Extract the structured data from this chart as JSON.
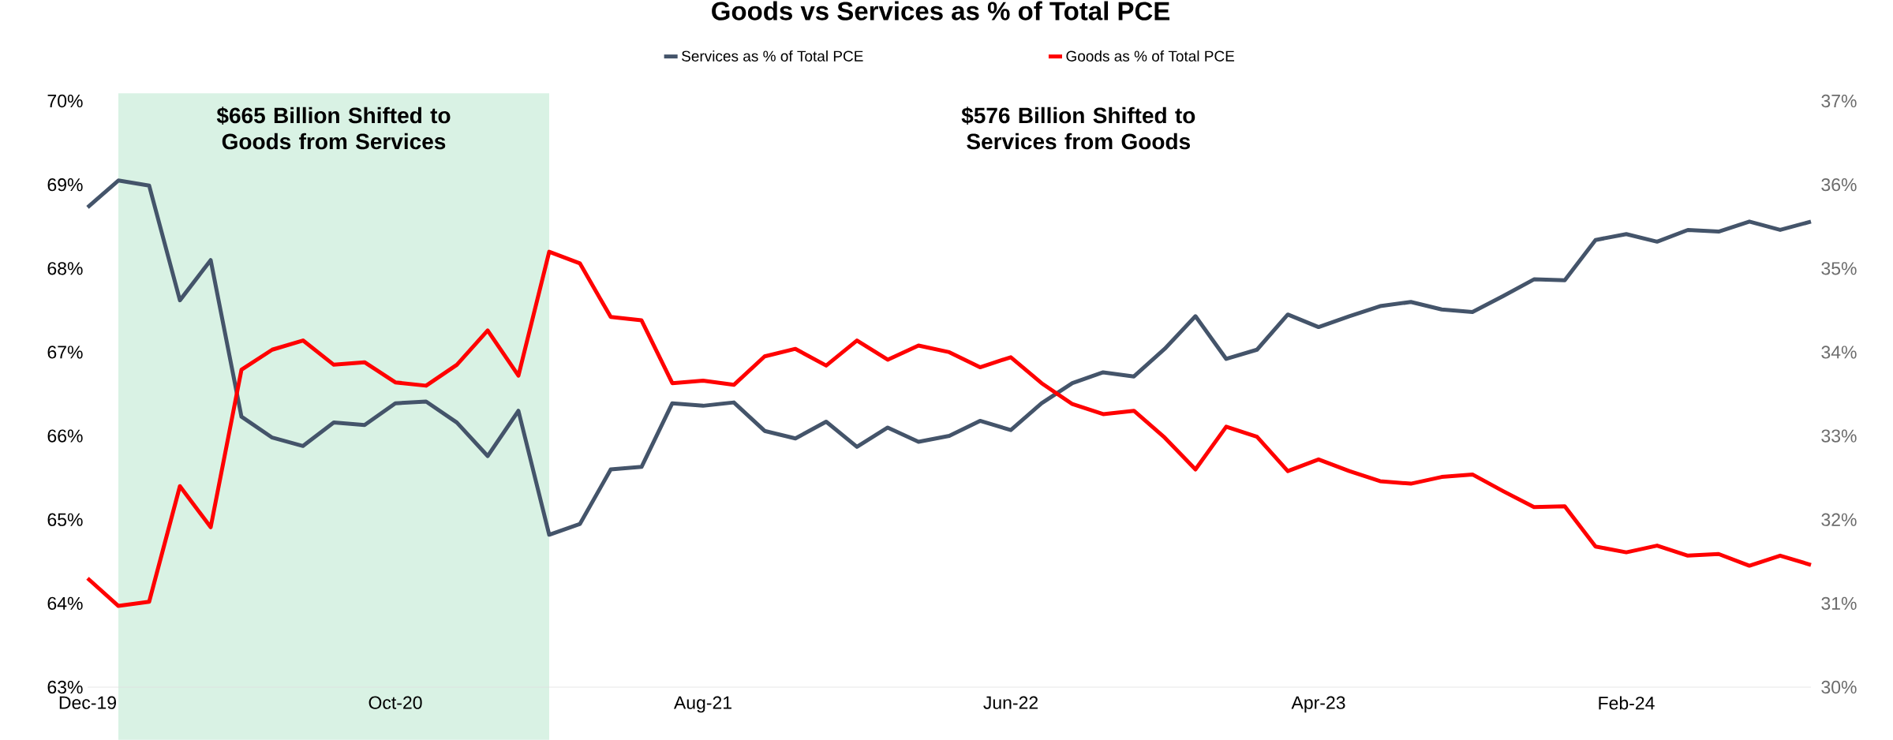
{
  "chart_data": {
    "type": "line",
    "title": "Goods vs Services as % of Total PCE",
    "x": [
      "2019-12",
      "2020-01",
      "2020-02",
      "2020-03",
      "2020-04",
      "2020-05",
      "2020-06",
      "2020-07",
      "2020-08",
      "2020-09",
      "2020-10",
      "2020-11",
      "2020-12",
      "2021-01",
      "2021-02",
      "2021-03",
      "2021-04",
      "2021-05",
      "2021-06",
      "2021-07",
      "2021-08",
      "2021-09",
      "2021-10",
      "2021-11",
      "2021-12",
      "2022-01",
      "2022-02",
      "2022-03",
      "2022-04",
      "2022-05",
      "2022-06",
      "2022-07",
      "2022-08",
      "2022-09",
      "2022-10",
      "2022-11",
      "2022-12",
      "2023-01",
      "2023-02",
      "2023-03",
      "2023-04",
      "2023-05",
      "2023-06",
      "2023-07",
      "2023-08",
      "2023-09",
      "2023-10",
      "2023-11",
      "2023-12",
      "2024-01",
      "2024-02",
      "2024-03",
      "2024-04",
      "2024-05",
      "2024-06",
      "2024-07",
      "2024-08"
    ],
    "series": [
      {
        "name": "Services as % of Total PCE",
        "color": "#44546a",
        "values": [
          68.73,
          69.05,
          68.99,
          67.62,
          68.1,
          66.23,
          65.98,
          65.88,
          66.16,
          66.13,
          66.39,
          66.41,
          66.16,
          65.76,
          66.3,
          64.82,
          64.95,
          65.6,
          65.63,
          66.39,
          66.36,
          66.4,
          66.06,
          65.97,
          66.17,
          65.87,
          66.1,
          65.93,
          66.0,
          66.18,
          66.07,
          66.39,
          66.63,
          66.76,
          66.71,
          67.04,
          67.43,
          66.92,
          67.03,
          67.45,
          67.3,
          67.43,
          67.55,
          67.6,
          67.51,
          67.48,
          67.67,
          67.87,
          67.86,
          68.34,
          68.41,
          68.32,
          68.46,
          68.44,
          68.56,
          68.46,
          68.56
        ]
      },
      {
        "name": "Goods as % of Total PCE",
        "color": "#ff0000",
        "axis": "y2",
        "values": [
          31.3,
          30.97,
          31.02,
          32.4,
          31.91,
          33.79,
          34.03,
          34.14,
          33.85,
          33.88,
          33.64,
          33.6,
          33.85,
          34.26,
          33.72,
          35.2,
          35.06,
          34.42,
          34.38,
          33.63,
          33.66,
          33.61,
          33.95,
          34.04,
          33.84,
          34.14,
          33.91,
          34.08,
          34.0,
          33.82,
          33.94,
          33.63,
          33.38,
          33.26,
          33.3,
          32.98,
          32.6,
          33.11,
          32.99,
          32.58,
          32.72,
          32.58,
          32.46,
          32.43,
          32.51,
          32.54,
          32.34,
          32.15,
          32.16,
          31.68,
          31.61,
          31.69,
          31.57,
          31.59,
          31.45,
          31.57,
          31.46
        ]
      }
    ],
    "xticks": [
      {
        "value": "2019-12",
        "label": "Dec-19"
      },
      {
        "value": "2020-10",
        "label": "Oct-20"
      },
      {
        "value": "2021-08",
        "label": "Aug-21"
      },
      {
        "value": "2022-06",
        "label": "Jun-22"
      },
      {
        "value": "2023-04",
        "label": "Apr-23"
      },
      {
        "value": "2024-02",
        "label": "Feb-24"
      }
    ],
    "xlim": [
      "2019-12",
      "2024-08"
    ],
    "ylim": [
      63,
      70
    ],
    "yticks": [
      {
        "value": 63,
        "label": "63%"
      },
      {
        "value": 64,
        "label": "64%"
      },
      {
        "value": 65,
        "label": "65%"
      },
      {
        "value": 66,
        "label": "66%"
      },
      {
        "value": 67,
        "label": "67%"
      },
      {
        "value": 68,
        "label": "68%"
      },
      {
        "value": 69,
        "label": "69%"
      },
      {
        "value": 70,
        "label": "70%"
      }
    ],
    "y2lim": [
      30,
      37
    ],
    "y2ticks": [
      {
        "value": 30,
        "label": "30%"
      },
      {
        "value": 31,
        "label": "31%"
      },
      {
        "value": 32,
        "label": "32%"
      },
      {
        "value": 33,
        "label": "33%"
      },
      {
        "value": 34,
        "label": "34%"
      },
      {
        "value": 35,
        "label": "35%"
      },
      {
        "value": 36,
        "label": "36%"
      },
      {
        "value": 37,
        "label": "37%"
      }
    ],
    "bands": [
      {
        "axis": "x",
        "from": "2020-01",
        "to": "2021-03",
        "label": "$665 Billion Shifted to Goods from Services",
        "color": "#d9f2e4"
      }
    ],
    "annotations": [
      "$576 Billion Shifted to Services from Goods"
    ],
    "legend": "top",
    "grid": false
  }
}
